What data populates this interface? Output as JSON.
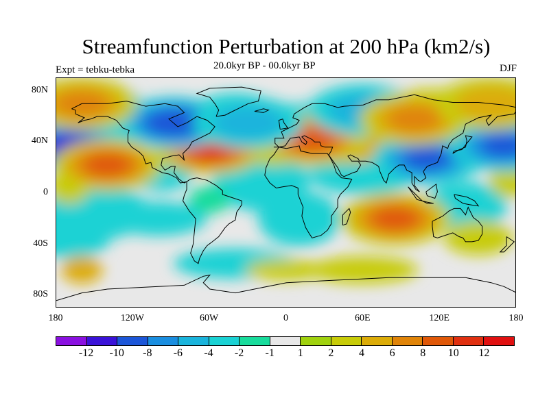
{
  "title": "Streamfunction Perturbation at 200 hPa (km2/s)",
  "subtitle": "20.0kyr BP - 00.0kyr BP",
  "left_label": "Expt = tebku-tebka",
  "right_label": "DJF",
  "map": {
    "projection": "cylindrical equidistant",
    "lon_range": [
      -180,
      180
    ],
    "lat_range": [
      -90,
      90
    ],
    "background_color": "#e8e8e8",
    "coastline_color": "#000000",
    "lat_ticks": [
      "80N",
      "40N",
      "0",
      "40S",
      "80S"
    ],
    "lon_ticks": [
      "180",
      "120W",
      "60W",
      "0",
      "60E",
      "120E",
      "180"
    ]
  },
  "colorbar": {
    "colors": [
      "#8a10e0",
      "#3a12d8",
      "#1c56d8",
      "#1a8ee0",
      "#1ab4dc",
      "#1ad2d4",
      "#18dc9c",
      "#e8e8e8",
      "#a0d20e",
      "#c8cc08",
      "#dcac08",
      "#e08408",
      "#e05808",
      "#e03010",
      "#e01010"
    ],
    "labels": [
      "-12",
      "-10",
      "-8",
      "-6",
      "-4",
      "-2",
      "-1",
      "1",
      "2",
      "4",
      "6",
      "8",
      "10",
      "12"
    ]
  },
  "chart_data": {
    "type": "contour",
    "variable": "Streamfunction Perturbation at 200 hPa",
    "units": "km2/s",
    "levels": [
      -12,
      -10,
      -8,
      -6,
      -4,
      -2,
      -1,
      1,
      2,
      4,
      6,
      8,
      10,
      12
    ],
    "features": [
      {
        "lon": -60,
        "lat": 35,
        "value": 11
      },
      {
        "lon": -88,
        "lat": 55,
        "value": -10
      },
      {
        "lon": -170,
        "lat": 37,
        "value": -11
      },
      {
        "lon": -140,
        "lat": 22,
        "value": 8
      },
      {
        "lon": 110,
        "lat": 27,
        "value": -9
      },
      {
        "lon": 170,
        "lat": 37,
        "value": -9
      },
      {
        "lon": 20,
        "lat": 42,
        "value": 8
      },
      {
        "lon": 85,
        "lat": -20,
        "value": 8
      },
      {
        "lon": -160,
        "lat": 70,
        "value": 7
      },
      {
        "lon": -30,
        "lat": 55,
        "value": -5
      },
      {
        "lon": 60,
        "lat": 65,
        "value": -5
      },
      {
        "lon": 100,
        "lat": 58,
        "value": 6
      },
      {
        "lon": 160,
        "lat": 70,
        "value": 5
      }
    ]
  }
}
